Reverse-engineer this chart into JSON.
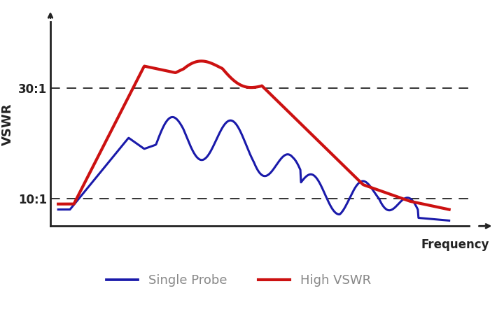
{
  "title": "",
  "ylabel": "VSWR",
  "xlabel": "Frequency",
  "background_color": "#ffffff",
  "hline_30": 30,
  "hline_10": 10,
  "hline_color": "#333333",
  "ytick_labels": [
    "10:1",
    "30:1"
  ],
  "ytick_values": [
    10,
    30
  ],
  "blue_color": "#1a1aaa",
  "red_color": "#cc1111",
  "legend_labels": [
    "Single Probe",
    "High VSWR"
  ],
  "legend_text_color": "#888888",
  "axis_color": "#222222",
  "blue_linewidth": 2.2,
  "red_linewidth": 3.0,
  "ylim": [
    5,
    42
  ],
  "xlim": [
    -0.02,
    1.05
  ]
}
